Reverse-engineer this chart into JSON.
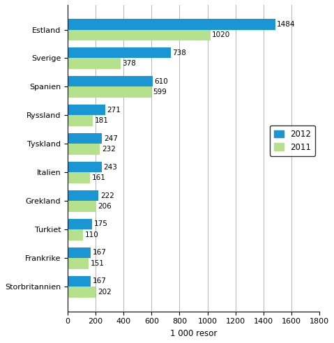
{
  "categories": [
    "Estland",
    "Sverige",
    "Spanien",
    "Ryssland",
    "Tyskland",
    "Italien",
    "Grekland",
    "Turkiet",
    "Frankrike",
    "Storbritannien"
  ],
  "values_2012": [
    1484,
    738,
    610,
    271,
    247,
    243,
    222,
    175,
    167,
    167
  ],
  "values_2011": [
    1020,
    378,
    599,
    181,
    232,
    161,
    206,
    110,
    151,
    202
  ],
  "color_2012": "#1a96d4",
  "color_2011": "#b5e08c",
  "xlabel": "1 000 resor",
  "xlim": [
    0,
    1800
  ],
  "xticks": [
    0,
    200,
    400,
    600,
    800,
    1000,
    1200,
    1400,
    1600,
    1800
  ],
  "legend_labels": [
    "2012",
    "2011"
  ],
  "bar_height": 0.38,
  "label_fontsize": 7.5,
  "tick_fontsize": 8,
  "xlabel_fontsize": 8.5
}
